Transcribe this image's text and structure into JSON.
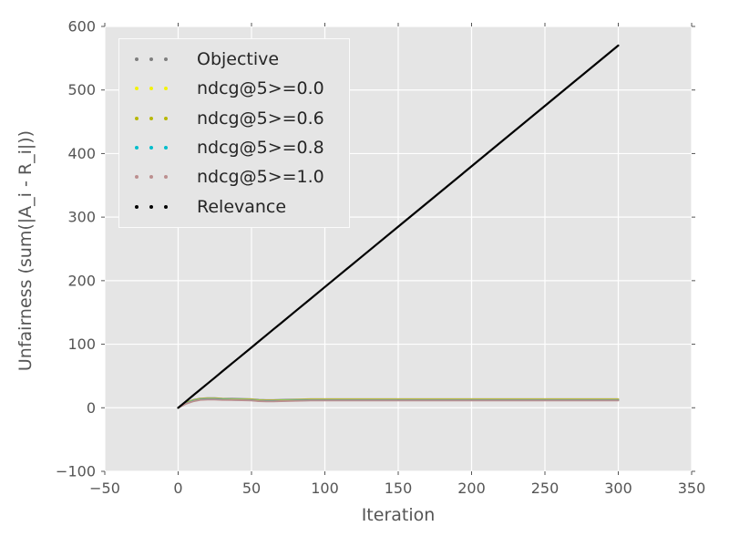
{
  "colors": {
    "figure_bg": "#ffffff",
    "plot_bg": "#e5e5e5",
    "grid": "#ffffff",
    "tick_color": "#555555",
    "tick_text": "#555555",
    "axis_label_text": "#555555",
    "legend_bg": "#e5e5e5",
    "legend_border": "#fbfbfb",
    "legend_text": "#262626"
  },
  "chart_data": {
    "type": "line",
    "title": "",
    "xlabel": "Iteration",
    "ylabel": "Unfairness (sum(|A_i - R_i|))",
    "xlim": [
      -50,
      350
    ],
    "ylim": [
      -100,
      600
    ],
    "xticks": [
      -50,
      0,
      50,
      100,
      150,
      200,
      250,
      300,
      350
    ],
    "yticks": [
      -100,
      0,
      100,
      200,
      300,
      400,
      500,
      600
    ],
    "grid": true,
    "linestyle": "dotted",
    "legend_position": "upper left",
    "x": [
      0,
      5,
      10,
      15,
      20,
      25,
      30,
      40,
      50,
      55,
      60,
      65,
      70,
      80,
      90,
      100,
      125,
      150,
      175,
      200,
      250,
      300
    ],
    "series": [
      {
        "name": "Objective",
        "color": "#7f7f7f",
        "width": 2,
        "values": [
          0,
          8,
          12,
          14.5,
          15,
          15,
          14.5,
          14,
          13.5,
          12.5,
          12,
          12,
          12.5,
          13,
          13.5,
          13.5,
          13.5,
          13.5,
          13.5,
          13.5,
          13.5,
          13.5
        ]
      },
      {
        "name": "ndcg@5>=0.0",
        "color": "#f2f20c",
        "width": 2,
        "values": [
          0,
          7.2,
          11.2,
          13.7,
          14.2,
          14.2,
          13.7,
          13.2,
          12.7,
          11.7,
          11.2,
          11.2,
          11.7,
          12.2,
          12.7,
          12.7,
          12.7,
          12.7,
          12.7,
          12.7,
          12.7,
          12.7
        ]
      },
      {
        "name": "ndcg@5>=0.6",
        "color": "#b8b808",
        "width": 2,
        "values": [
          0,
          6.8,
          10.8,
          13.3,
          13.8,
          13.8,
          13.3,
          12.8,
          12.3,
          11.3,
          10.8,
          10.8,
          11.3,
          11.8,
          12.3,
          12.3,
          12.3,
          12.3,
          12.3,
          12.3,
          12.3,
          12.3
        ]
      },
      {
        "name": "ndcg@5>=0.8",
        "color": "#00becc",
        "width": 2,
        "values": [
          0,
          6.4,
          10.4,
          12.9,
          13.4,
          13.4,
          12.9,
          12.4,
          11.9,
          10.9,
          10.4,
          10.4,
          10.9,
          11.4,
          11.9,
          11.9,
          11.9,
          11.9,
          11.9,
          11.9,
          11.9,
          11.9
        ]
      },
      {
        "name": "ndcg@5>=1.0",
        "color": "#bc8f8f",
        "width": 2,
        "values": [
          0,
          6,
          10,
          12.5,
          13,
          13,
          12.5,
          12,
          11.5,
          10.5,
          10,
          10,
          10.5,
          11,
          11.5,
          11.5,
          11.5,
          11.5,
          11.5,
          11.5,
          11.5,
          11.5
        ]
      },
      {
        "name": "Relevance",
        "color": "#000000",
        "width": 2.2,
        "values": [
          0,
          9.5,
          19,
          28.5,
          38,
          47.5,
          57,
          76,
          95,
          104.5,
          114,
          123.5,
          133,
          152,
          171,
          190,
          237.5,
          285,
          332.5,
          380,
          475,
          570
        ]
      }
    ]
  }
}
